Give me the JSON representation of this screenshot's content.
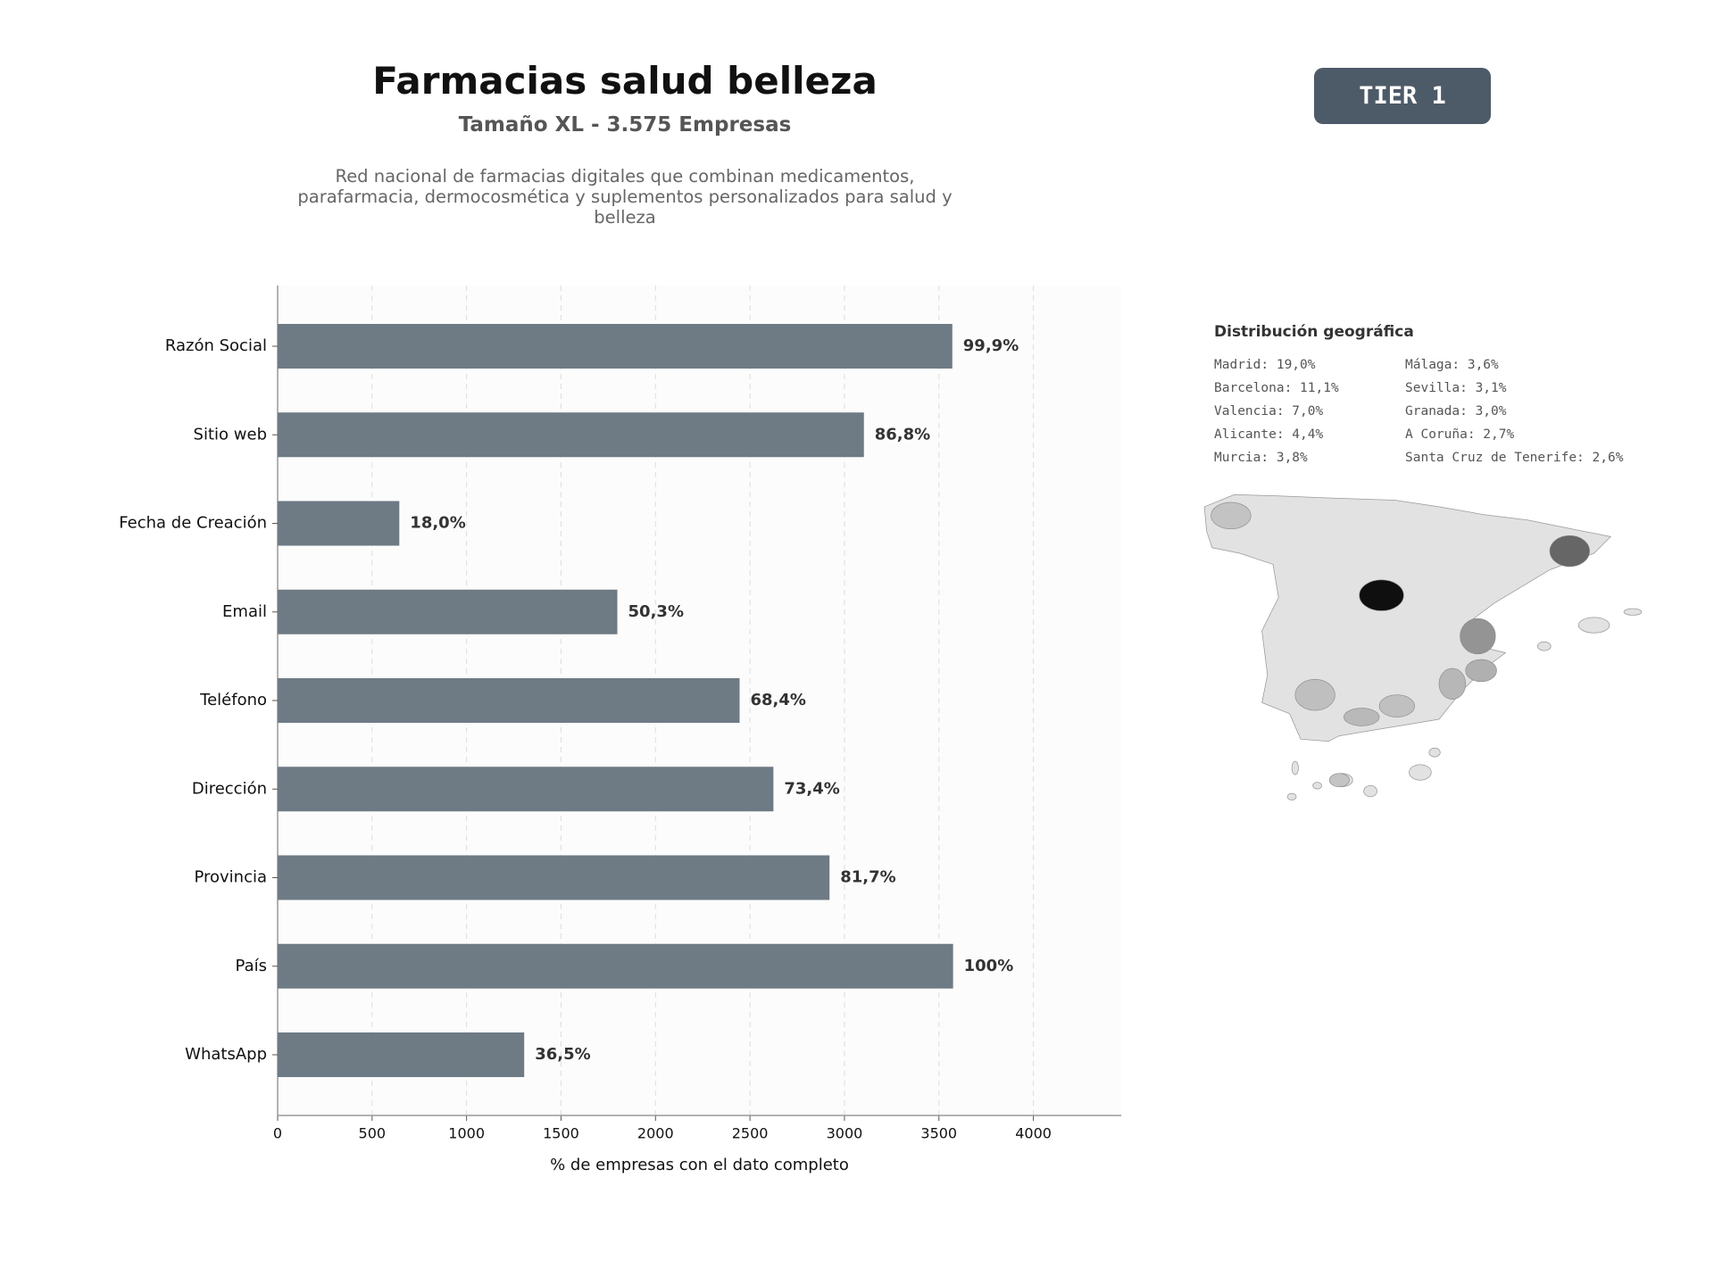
{
  "header": {
    "title": "Farmacias salud belleza",
    "subtitle": "Tamaño XL - 3.575 Empresas",
    "description": "Red nacional de farmacias digitales que combinan medicamentos, parafarmacia, dermocosmética y suplementos personalizados para salud y belleza",
    "badge": "TIER 1"
  },
  "chart_data": {
    "type": "barh",
    "categories": [
      "Razón Social",
      "Sitio web",
      "Fecha de Creación",
      "Email",
      "Teléfono",
      "Dirección",
      "Provincia",
      "País",
      "WhatsApp"
    ],
    "values": [
      3571,
      3103,
      644,
      1798,
      2445,
      2624,
      2921,
      3575,
      1305
    ],
    "value_labels": [
      "99,9%",
      "86,8%",
      "18,0%",
      "50,3%",
      "68,4%",
      "73,4%",
      "81,7%",
      "100%",
      "36,5%"
    ],
    "color": "#6e7a84",
    "xlim": [
      0,
      4465
    ],
    "xticks": [
      0,
      500,
      1000,
      1500,
      2000,
      2500,
      3000,
      3500,
      4000
    ],
    "xlabel": "% de empresas con el dato completo",
    "grid": true
  },
  "geo": {
    "title": "Distribución geográfica",
    "entries": [
      {
        "label": "Madrid: 19,0%",
        "value": 19.0
      },
      {
        "label": "Barcelona: 11,1%",
        "value": 11.1
      },
      {
        "label": "Valencia: 7,0%",
        "value": 7.0
      },
      {
        "label": "Alicante: 4,4%",
        "value": 4.4
      },
      {
        "label": "Murcia: 3,8%",
        "value": 3.8
      },
      {
        "label": "Málaga: 3,6%",
        "value": 3.6
      },
      {
        "label": "Sevilla: 3,1%",
        "value": 3.1
      },
      {
        "label": "Granada: 3,0%",
        "value": 3.0
      },
      {
        "label": "A Coruña: 2,7%",
        "value": 2.7
      },
      {
        "label": "Santa Cruz de Tenerife: 2,6%",
        "value": 2.6
      }
    ]
  }
}
